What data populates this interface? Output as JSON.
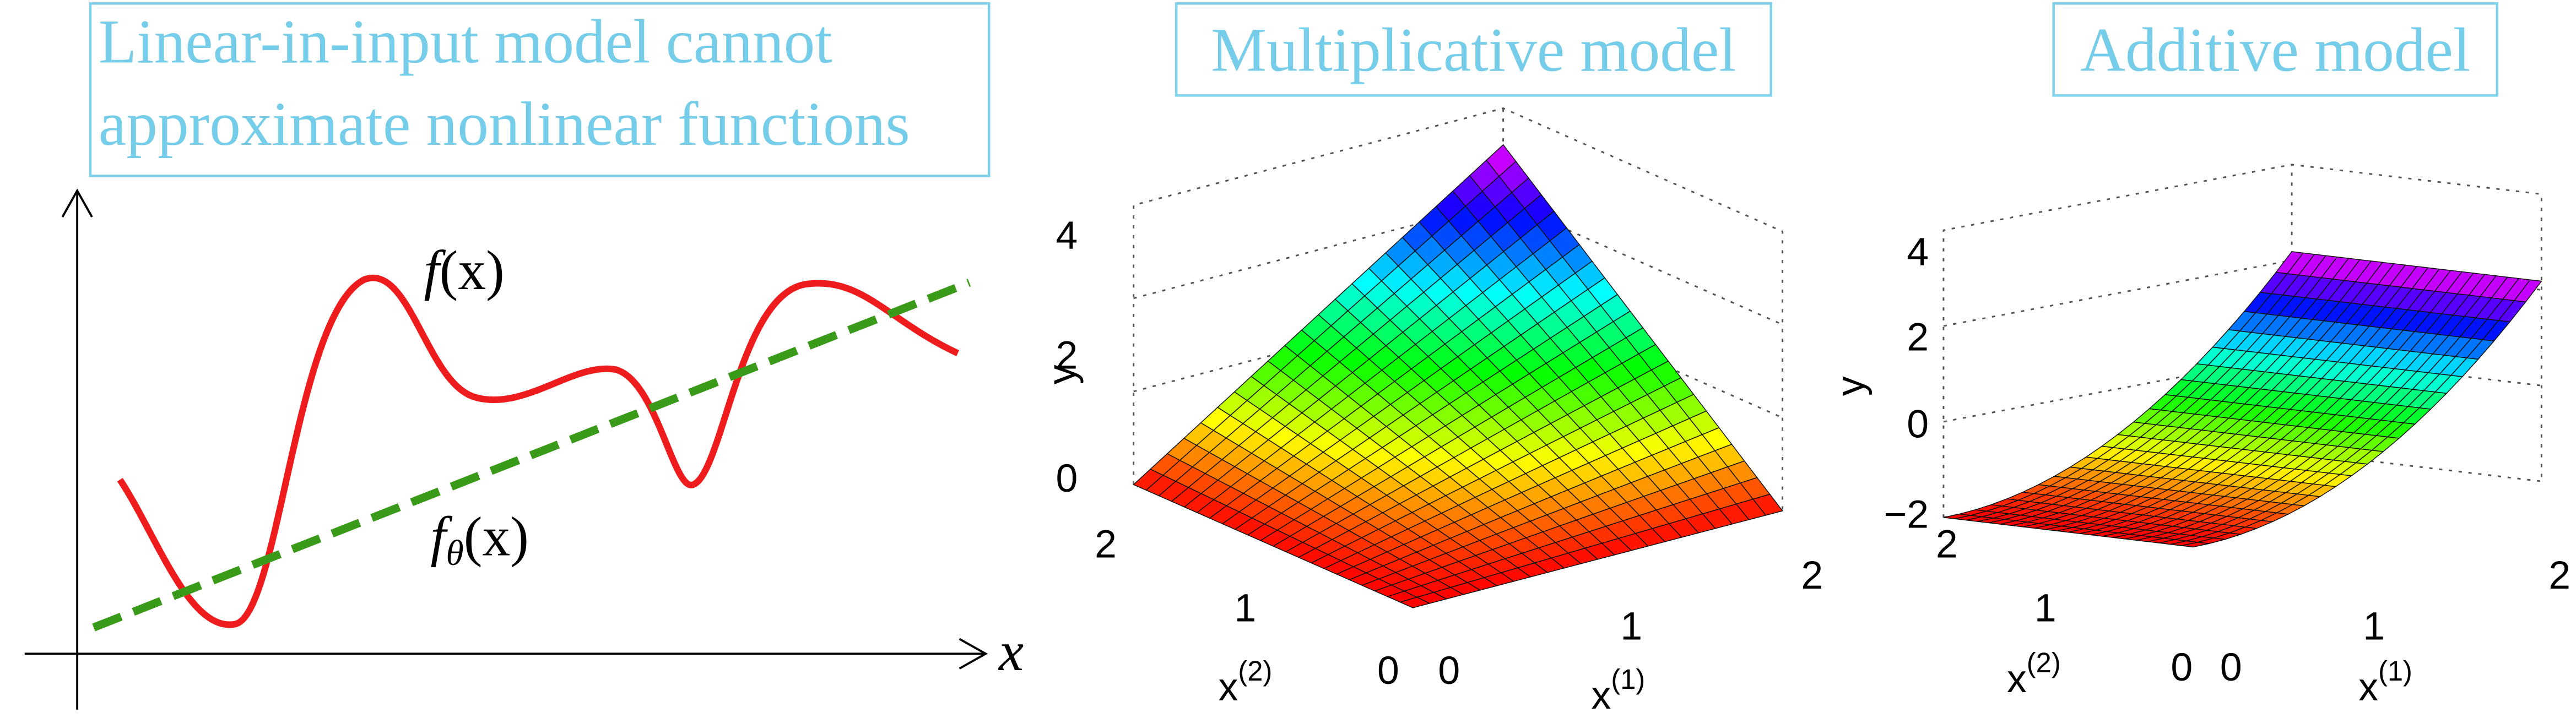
{
  "panels": [
    {
      "title_lines": [
        "Linear-in-input model cannot",
        "approximate nonlinear functions"
      ],
      "curve_label": [
        "f",
        "(x)"
      ],
      "line_label": [
        "f",
        "θ",
        "(x)"
      ],
      "x_axis_label": "x"
    },
    {
      "title": "Multiplicative model",
      "y_label": "y",
      "x1_label": [
        "x",
        "(1)"
      ],
      "x2_label": [
        "x",
        "(2)"
      ],
      "y_ticks": [
        "0",
        "2",
        "4"
      ],
      "x1_ticks": [
        "0",
        "1",
        "2"
      ],
      "x2_ticks": [
        "0",
        "1",
        "2"
      ]
    },
    {
      "title": "Additive model",
      "y_label": "y",
      "x1_label": [
        "x",
        "(1)"
      ],
      "x2_label": [
        "x",
        "(2)"
      ],
      "y_ticks": [
        "−2",
        "0",
        "2",
        "4"
      ],
      "x1_ticks": [
        "0",
        "1",
        "2"
      ],
      "x2_ticks": [
        "0",
        "1",
        "2"
      ]
    }
  ]
}
